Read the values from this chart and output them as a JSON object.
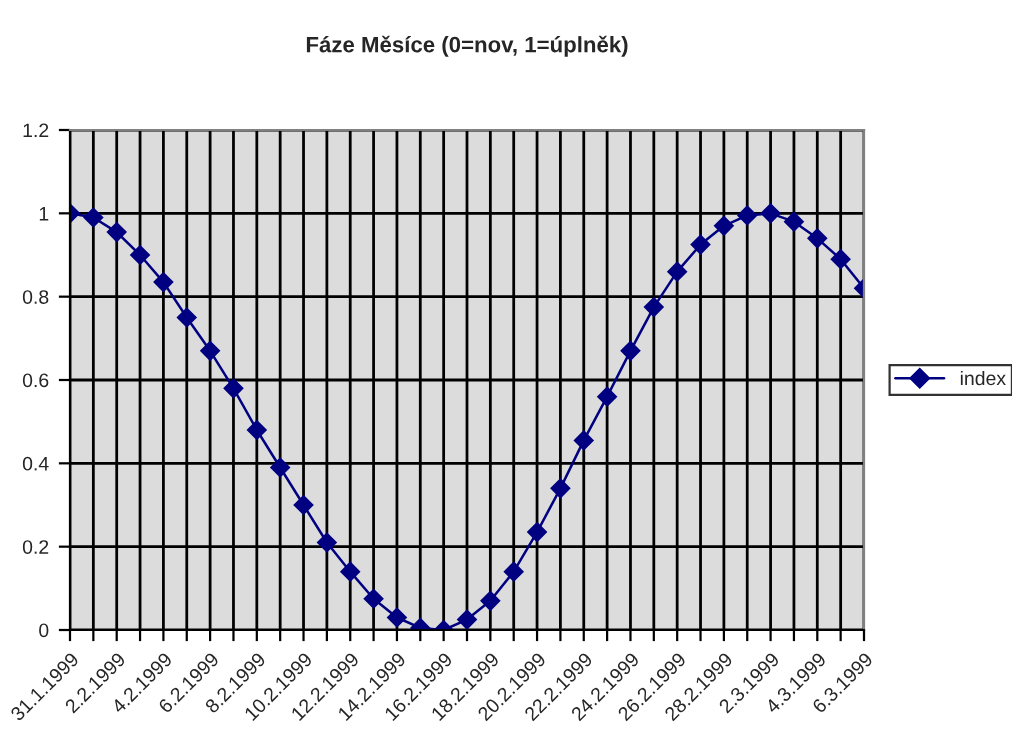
{
  "chart_data": {
    "type": "line",
    "title": "Fáze Měsíce (0=nov, 1=úplněk)",
    "categories": [
      "31.1.1999",
      null,
      "2.2.1999",
      null,
      "4.2.1999",
      null,
      "6.2.1999",
      null,
      "8.2.1999",
      null,
      "10.2.1999",
      null,
      "12.2.1999",
      null,
      "14.2.1999",
      null,
      "16.2.1999",
      null,
      "18.2.1999",
      null,
      "20.2.1999",
      null,
      "22.2.1999",
      null,
      "24.2.1999",
      null,
      "26.2.1999",
      null,
      "28.2.1999",
      null,
      "2.3.1999",
      null,
      "4.3.1999",
      null,
      "6.3.1999"
    ],
    "series": [
      {
        "name": "index",
        "color": "#000080",
        "values": [
          1.0,
          0.99,
          0.955,
          0.9,
          0.835,
          0.75,
          0.67,
          0.58,
          0.48,
          0.39,
          0.3,
          0.21,
          0.14,
          0.075,
          0.03,
          0.005,
          0.0,
          0.025,
          0.07,
          0.14,
          0.235,
          0.34,
          0.455,
          0.56,
          0.67,
          0.775,
          0.86,
          0.925,
          0.97,
          0.995,
          1.0,
          0.98,
          0.94,
          0.89,
          0.82
        ]
      }
    ],
    "ylim": [
      0,
      1.2
    ],
    "yticks": [
      0,
      0.2,
      0.4,
      0.6,
      0.8,
      1,
      1.2
    ],
    "grid": true,
    "legend": "right",
    "marker": "diamond",
    "line_style": "solid"
  }
}
